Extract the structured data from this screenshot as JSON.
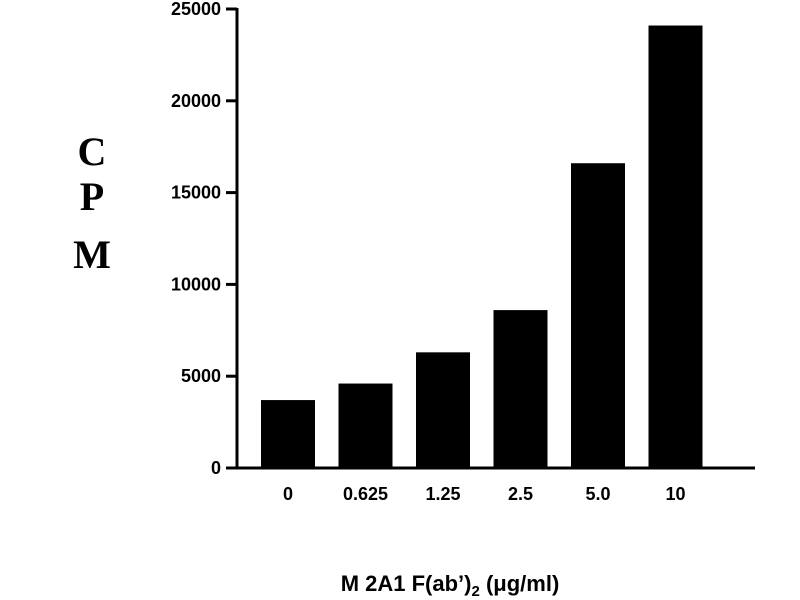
{
  "chart_data": {
    "type": "bar",
    "categories": [
      "0",
      "0.625",
      "1.25",
      "2.5",
      "5.0",
      "10"
    ],
    "values": [
      3700,
      4600,
      6300,
      8600,
      16600,
      24100
    ],
    "title": "",
    "ylabel": "CPM",
    "ylabel_letters": [
      "C",
      "P",
      "M"
    ],
    "xlabel": {
      "main": "M 2A1 F(ab’)",
      "subscript": "2",
      "units": " (μg/ml)"
    },
    "ylim": [
      0,
      25000
    ],
    "yticks": [
      0,
      5000,
      10000,
      15000,
      20000,
      25000
    ],
    "ytick_labels": [
      "0",
      "5000",
      "10000",
      "15000",
      "20000",
      "25000"
    ],
    "grid": false,
    "bar_color": "#000000"
  }
}
